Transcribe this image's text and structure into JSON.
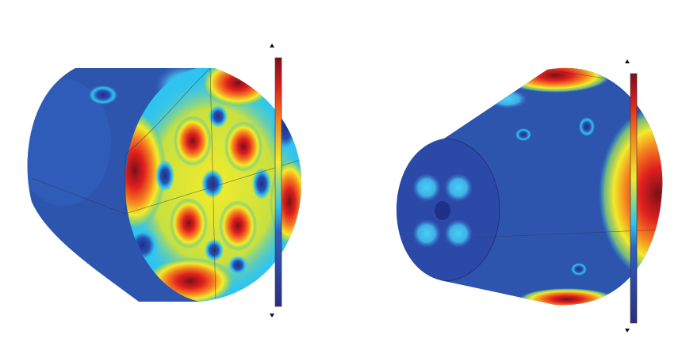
{
  "figure": {
    "panels": [
      {
        "id": "left",
        "colormap": "rainbow",
        "colorbar_arrows": [
          "up-triangle-icon",
          "down-triangle-icon"
        ]
      },
      {
        "id": "right",
        "colormap": "rainbow",
        "colorbar_arrows": [
          "up-triangle-icon",
          "down-triangle-icon"
        ]
      }
    ],
    "colors": {
      "low": "#2a3f9c",
      "low_mid": "#2fc4f0",
      "mid": "#f2ec2a",
      "high_mid": "#f58220",
      "high": "#c8141e",
      "max": "#7a1018"
    }
  }
}
